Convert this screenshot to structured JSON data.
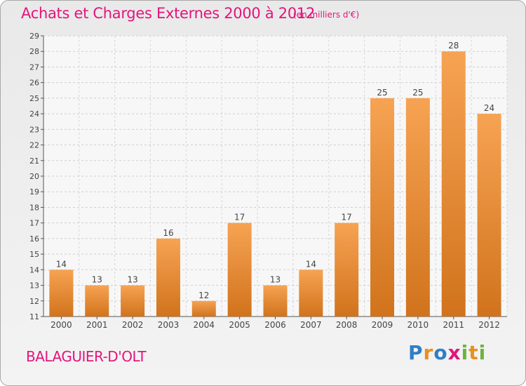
{
  "title": "Achats et Charges Externes 2000 à 2012",
  "unit_note": "(en milliers d'€)",
  "commune": "BALAGUIER-D'OLT",
  "logo": {
    "letters": [
      {
        "char": "P",
        "color": "#2f7fc6"
      },
      {
        "char": "r",
        "color": "#e8901e"
      },
      {
        "char": "o",
        "color": "#2f7fc6"
      },
      {
        "char": "x",
        "color": "#e4147c"
      },
      {
        "char": "i",
        "color": "#6cb33f"
      },
      {
        "char": "t",
        "color": "#e8901e"
      },
      {
        "char": "i",
        "color": "#6cb33f"
      }
    ]
  },
  "chart_data": {
    "type": "bar",
    "title": "Achats et Charges Externes 2000 à 2012",
    "categories": [
      "2000",
      "2001",
      "2002",
      "2003",
      "2004",
      "2005",
      "2006",
      "2007",
      "2008",
      "2009",
      "2010",
      "2011",
      "2012"
    ],
    "values": [
      14,
      13,
      13,
      16,
      12,
      17,
      13,
      14,
      17,
      25,
      25,
      28,
      24
    ],
    "ylim": [
      11,
      29
    ],
    "yticks": [
      11,
      12,
      13,
      14,
      15,
      16,
      17,
      18,
      19,
      20,
      21,
      22,
      23,
      24,
      25,
      26,
      27,
      28,
      29
    ],
    "grid": true,
    "bar_color_top": "#f6a353",
    "bar_color_bottom": "#d1731c",
    "data_labels": true
  }
}
